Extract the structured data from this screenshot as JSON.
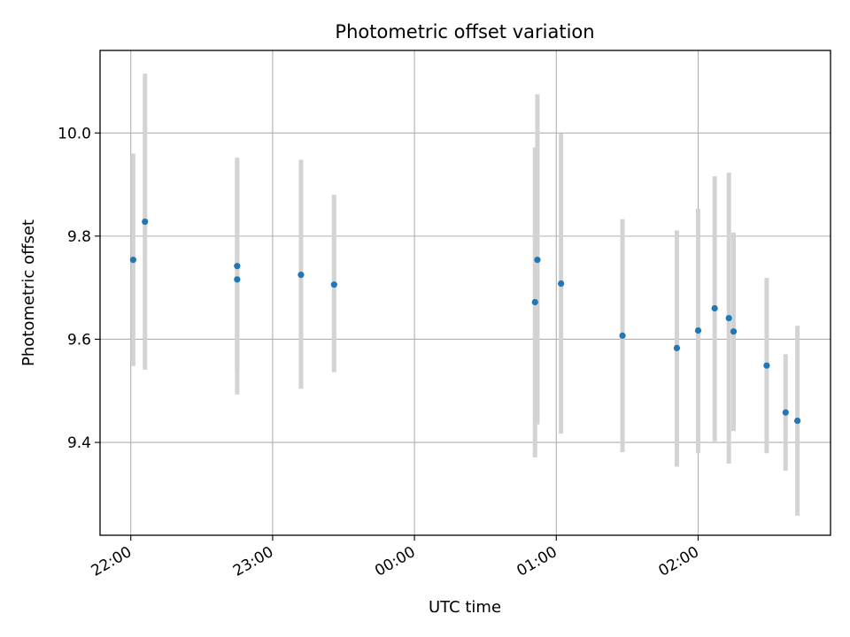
{
  "chart_data": {
    "type": "scatter",
    "title": "Photometric offset variation",
    "xlabel": "UTC time",
    "ylabel": "Photometric offset",
    "x_unit": "UTC time (HH:MM), spanning midnight; 24:00 = 00:00 next day",
    "xlim": [
      "21:47",
      "02:56"
    ],
    "ylim": [
      9.22,
      10.16
    ],
    "x_ticks": [
      "22:00",
      "23:00",
      "00:00",
      "01:00",
      "02:00"
    ],
    "y_ticks": [
      9.4,
      9.6,
      9.8,
      10.0
    ],
    "y_tick_labels": [
      "9.4",
      "9.6",
      "9.8",
      "10.0"
    ],
    "grid": true,
    "marker_color": "#1f77b4",
    "errorbar_color": "#d3d3d3",
    "points": [
      {
        "x": "22:01",
        "y": 9.754,
        "y_low": 9.548,
        "y_high": 9.96
      },
      {
        "x": "22:06",
        "y": 9.828,
        "y_low": 9.541,
        "y_high": 10.115
      },
      {
        "x": "22:45",
        "y": 9.742,
        "y_low": 9.535,
        "y_high": 9.952
      },
      {
        "x": "22:45",
        "y": 9.716,
        "y_low": 9.493,
        "y_high": 9.94
      },
      {
        "x": "23:12",
        "y": 9.725,
        "y_low": 9.504,
        "y_high": 9.948
      },
      {
        "x": "23:26",
        "y": 9.706,
        "y_low": 9.536,
        "y_high": 9.88
      },
      {
        "x": "00:51",
        "y": 9.672,
        "y_low": 9.371,
        "y_high": 9.972
      },
      {
        "x": "00:52",
        "y": 9.754,
        "y_low": 9.435,
        "y_high": 10.075
      },
      {
        "x": "01:02",
        "y": 9.708,
        "y_low": 9.417,
        "y_high": 9.999
      },
      {
        "x": "01:28",
        "y": 9.607,
        "y_low": 9.381,
        "y_high": 9.833
      },
      {
        "x": "01:51",
        "y": 9.583,
        "y_low": 9.353,
        "y_high": 9.811
      },
      {
        "x": "02:00",
        "y": 9.617,
        "y_low": 9.379,
        "y_high": 9.853
      },
      {
        "x": "02:07",
        "y": 9.66,
        "y_low": 9.402,
        "y_high": 9.916
      },
      {
        "x": "02:13",
        "y": 9.641,
        "y_low": 9.359,
        "y_high": 9.923
      },
      {
        "x": "02:15",
        "y": 9.615,
        "y_low": 9.422,
        "y_high": 9.807
      },
      {
        "x": "02:29",
        "y": 9.549,
        "y_low": 9.379,
        "y_high": 9.719
      },
      {
        "x": "02:37",
        "y": 9.458,
        "y_low": 9.345,
        "y_high": 9.571
      },
      {
        "x": "02:42",
        "y": 9.442,
        "y_low": 9.258,
        "y_high": 9.626
      }
    ]
  }
}
